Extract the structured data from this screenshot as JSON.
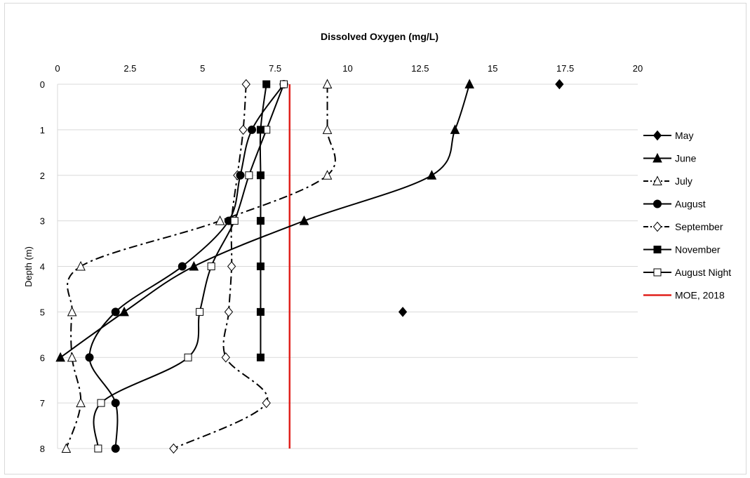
{
  "chart_data": {
    "type": "line",
    "title": "Dissolved Oxygen (mg/L)",
    "xlabel": "",
    "ylabel": "Depth (m)",
    "xlim": [
      0,
      20
    ],
    "ylim": [
      0,
      8
    ],
    "y_reversed": true,
    "x_axis_position": "top",
    "x_ticks": [
      "0",
      "2.5",
      "5",
      "7.5",
      "10",
      "12.5",
      "15",
      "17.5",
      "20"
    ],
    "y_ticks": [
      "0",
      "1",
      "2",
      "3",
      "4",
      "5",
      "6",
      "7",
      "8"
    ],
    "grid": "horizontal",
    "legend_position": "right",
    "series": [
      {
        "name": "May",
        "marker": "diamond-filled",
        "line": "none",
        "color": "#000000",
        "points": [
          [
            17.3,
            0
          ],
          [
            11.9,
            5
          ]
        ]
      },
      {
        "name": "June",
        "marker": "triangle-filled",
        "line": "solid",
        "color": "#000000",
        "points": [
          [
            14.2,
            0
          ],
          [
            13.7,
            1
          ],
          [
            12.9,
            2
          ],
          [
            8.5,
            3
          ],
          [
            4.7,
            4
          ],
          [
            2.3,
            5
          ],
          [
            0.1,
            6
          ]
        ]
      },
      {
        "name": "July",
        "marker": "triangle-open",
        "line": "dash-dot",
        "color": "#000000",
        "points": [
          [
            9.3,
            0
          ],
          [
            9.3,
            1
          ],
          [
            9.3,
            2
          ],
          [
            5.6,
            3
          ],
          [
            0.8,
            4
          ],
          [
            0.5,
            5
          ],
          [
            0.5,
            6
          ],
          [
            0.8,
            7
          ],
          [
            0.3,
            8
          ]
        ]
      },
      {
        "name": "August",
        "marker": "circle-filled",
        "line": "solid",
        "color": "#000000",
        "points": [
          [
            7.8,
            0
          ],
          [
            6.7,
            1
          ],
          [
            6.3,
            2
          ],
          [
            5.9,
            3
          ],
          [
            4.3,
            4
          ],
          [
            2.0,
            5
          ],
          [
            1.1,
            6
          ],
          [
            2.0,
            7
          ],
          [
            2.0,
            8
          ]
        ]
      },
      {
        "name": "September",
        "marker": "diamond-open",
        "line": "dash-dot",
        "color": "#000000",
        "points": [
          [
            6.5,
            0
          ],
          [
            6.4,
            1
          ],
          [
            6.2,
            2
          ],
          [
            6.0,
            3
          ],
          [
            6.0,
            4
          ],
          [
            5.9,
            5
          ],
          [
            5.8,
            6
          ],
          [
            7.2,
            7
          ],
          [
            4.0,
            8
          ]
        ]
      },
      {
        "name": "November",
        "marker": "square-filled",
        "line": "solid",
        "color": "#000000",
        "points": [
          [
            7.2,
            0
          ],
          [
            7.0,
            1
          ],
          [
            7.0,
            2
          ],
          [
            7.0,
            3
          ],
          [
            7.0,
            4
          ],
          [
            7.0,
            5
          ],
          [
            7.0,
            6
          ]
        ]
      },
      {
        "name": "August Night",
        "marker": "square-open",
        "line": "solid",
        "color": "#000000",
        "points": [
          [
            7.8,
            0
          ],
          [
            7.2,
            1
          ],
          [
            6.6,
            2
          ],
          [
            6.1,
            3
          ],
          [
            5.3,
            4
          ],
          [
            4.9,
            5
          ],
          [
            4.5,
            6
          ],
          [
            1.5,
            7
          ],
          [
            1.4,
            8
          ]
        ]
      },
      {
        "name": "MOE, 2018",
        "marker": "none",
        "line": "solid",
        "color": "#e0201b",
        "points": [
          [
            8.0,
            0
          ],
          [
            8.0,
            8
          ]
        ]
      }
    ]
  }
}
